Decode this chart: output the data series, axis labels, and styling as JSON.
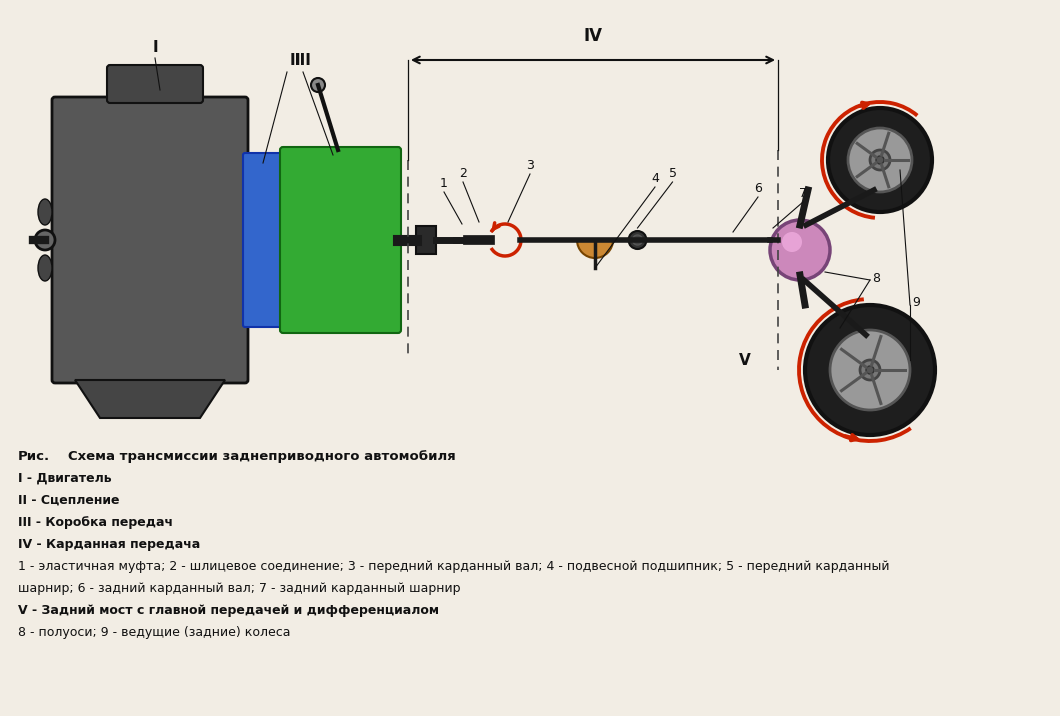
{
  "bg_color": "#f2ede4",
  "title_text": "Рис.     Схема трансмиссии заднеприводного автомобиля",
  "engine_color": "#585858",
  "clutch_color": "#3366cc",
  "gearbox_color": "#33aa33",
  "shaft_color": "#1a1a1a",
  "diff_color": "#cc88cc",
  "arrow_color": "#cc2200",
  "dashed_line_color": "#444444",
  "dim_line_color": "#111111",
  "bearing_color": "#cc8833",
  "legend_lines": [
    {
      "text": "I - Двигатель",
      "bold": true
    },
    {
      "text": "II - Сцепление",
      "bold": true
    },
    {
      "text": "III - Коробка передач",
      "bold": true
    },
    {
      "text": "IV - Карданная передача",
      "bold": true
    },
    {
      "text": "1 - эластичная муфта; 2 - шлицевое соединение; 3 - передний карданный вал; 4 - подвесной подшипник; 5 - передний карданный",
      "bold": false
    },
    {
      "text": "шарнир; 6 - задний карданный вал; 7 - задний карданный шарнир",
      "bold": false
    },
    {
      "text": "V - Задний мост с главной передачей и дифференциалом",
      "bold": true
    },
    {
      "text": "8 - полуоси; 9 - ведущие (задние) колеса",
      "bold": false
    }
  ]
}
